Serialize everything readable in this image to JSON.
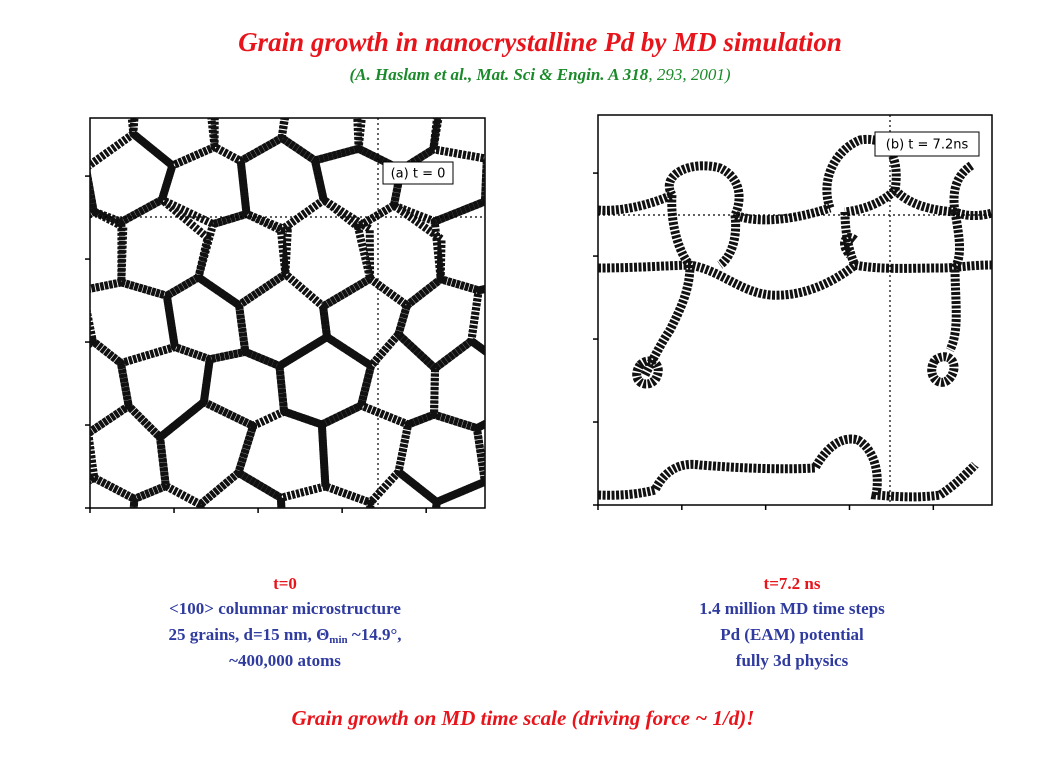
{
  "header": {
    "title": "Grain growth in nanocrystalline Pd by MD simulation",
    "citation": {
      "main": "(A. Haslam et al., Mat. Sci & Engin. A 318",
      "rest": ", 293, 2001)"
    }
  },
  "panels": [
    {
      "label": "(a) t = 0",
      "caption": {
        "time": "t=0",
        "line1": "<100> columnar microstructure",
        "line2": {
          "before": "25 grains, d=15 nm, ",
          "symbol": "Θ",
          "sub": "min",
          "after": " ~14.9°,"
        },
        "line3": "~400,000 atoms"
      }
    },
    {
      "label": "(b) t = 7.2ns",
      "caption": {
        "time": "t=7.2 ns",
        "line1": "1.4 million MD time steps",
        "line2": "Pd (EAM) potential",
        "line3": "fully 3d physics"
      }
    }
  ],
  "footer": "Grain growth on MD time scale (driving force ~ 1/d)!"
}
